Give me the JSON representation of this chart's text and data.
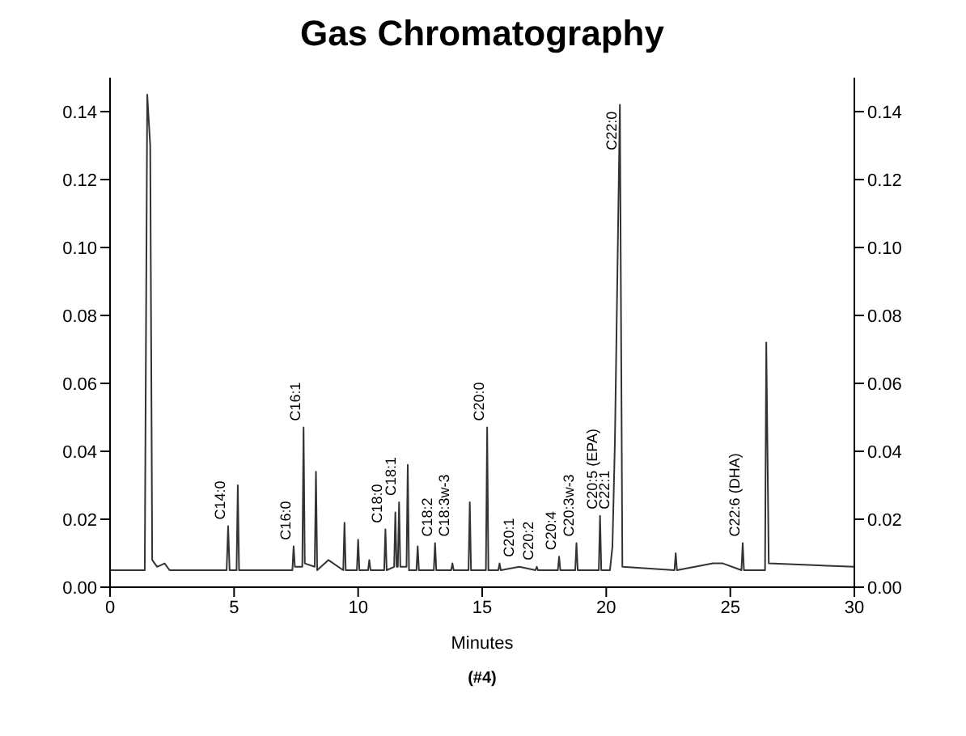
{
  "chart_data": {
    "type": "line",
    "title": "Gas Chromatography",
    "xlabel": "Minutes",
    "x": [
      0,
      1.4,
      1.5,
      1.62,
      1.7,
      1.9,
      2.2,
      2.4,
      4.7,
      4.76,
      4.82,
      5.1,
      5.15,
      5.2,
      7.35,
      7.4,
      7.45,
      7.75,
      7.8,
      7.85,
      8.25,
      8.3,
      8.35,
      8.8,
      9.4,
      9.45,
      9.5,
      9.95,
      10.0,
      10.05,
      10.4,
      10.45,
      10.5,
      11.05,
      11.1,
      11.15,
      11.45,
      11.5,
      11.55,
      11.6,
      11.65,
      11.7,
      11.95,
      12.0,
      12.05,
      12.35,
      12.4,
      12.45,
      13.05,
      13.1,
      13.15,
      13.75,
      13.8,
      13.85,
      14.45,
      14.5,
      14.55,
      15.15,
      15.2,
      15.25,
      15.65,
      15.7,
      15.75,
      16.5,
      17.15,
      17.2,
      17.25,
      18.05,
      18.1,
      18.15,
      18.75,
      18.8,
      18.85,
      19.7,
      19.75,
      19.8,
      20.15,
      20.25,
      20.35,
      20.55,
      20.65,
      22.75,
      22.8,
      22.85,
      24.3,
      24.7,
      25.45,
      25.5,
      25.55,
      26.4,
      26.45,
      26.55,
      30
    ],
    "series": [
      {
        "color": "#333333",
        "values": [
          0.005,
          0.005,
          0.145,
          0.13,
          0.008,
          0.006,
          0.007,
          0.005,
          0.005,
          0.018,
          0.005,
          0.005,
          0.03,
          0.005,
          0.005,
          0.012,
          0.006,
          0.006,
          0.047,
          0.007,
          0.006,
          0.034,
          0.005,
          0.008,
          0.005,
          0.019,
          0.005,
          0.005,
          0.014,
          0.005,
          0.005,
          0.008,
          0.005,
          0.005,
          0.017,
          0.005,
          0.006,
          0.022,
          0.006,
          0.006,
          0.025,
          0.006,
          0.006,
          0.036,
          0.005,
          0.005,
          0.012,
          0.005,
          0.005,
          0.013,
          0.005,
          0.005,
          0.007,
          0.005,
          0.005,
          0.025,
          0.005,
          0.005,
          0.047,
          0.005,
          0.005,
          0.007,
          0.005,
          0.006,
          0.005,
          0.006,
          0.005,
          0.005,
          0.009,
          0.005,
          0.005,
          0.013,
          0.005,
          0.005,
          0.021,
          0.005,
          0.005,
          0.012,
          0.043,
          0.142,
          0.006,
          0.005,
          0.01,
          0.005,
          0.007,
          0.007,
          0.005,
          0.013,
          0.005,
          0.005,
          0.072,
          0.007,
          0.006
        ]
      }
    ],
    "xlim": [
      0,
      30
    ],
    "xticks": [
      0,
      5,
      10,
      15,
      20,
      25,
      30
    ],
    "ylim": [
      0,
      0.15
    ],
    "yticks": [
      {
        "value": 0,
        "label": "0.00"
      },
      0.02,
      0.04,
      0.06,
      0.08,
      {
        "value": 0.1,
        "label": "0.10"
      },
      0.12,
      0.14
    ],
    "y2lim": [
      0,
      0.15
    ],
    "y2ticks": [
      {
        "value": 0,
        "label": "0.00"
      },
      0.02,
      0.04,
      0.06,
      0.08,
      {
        "value": 0.1,
        "label": "0.10"
      },
      0.12,
      0.14
    ],
    "grid": false,
    "legend": false,
    "marker": "none",
    "line_style": "solid",
    "annotations": [
      {
        "text": "C14:0",
        "x": 4.76,
        "y": 0.018
      },
      {
        "text": "C16:0",
        "x": 7.4,
        "y": 0.012
      },
      {
        "text": "C16:1",
        "x": 7.8,
        "y": 0.047
      },
      {
        "text": "C18:0",
        "x": 11.1,
        "y": 0.017
      },
      {
        "text": "C18:1",
        "x": 11.65,
        "y": 0.025
      },
      {
        "text": "C18:2",
        "x": 12.4,
        "y": 0.012
      },
      {
        "text": "C18:3w-3",
        "x": 13.8,
        "y": 0.007
      },
      {
        "text": "C20:0",
        "x": 15.2,
        "y": 0.047
      },
      {
        "text": "C20:1",
        "x": 15.7,
        "y": 0.007
      },
      {
        "text": "C20:2",
        "x": 17.2,
        "y": 0.006
      },
      {
        "text": "C20:4",
        "x": 18.1,
        "y": 0.009
      },
      {
        "text": "C20:3w-3",
        "x": 18.8,
        "y": 0.013
      },
      {
        "text": "C20:5 (EPA)",
        "x": 19.75,
        "y": 0.021
      },
      {
        "text": "C22:1",
        "x": 20.25,
        "y": 0.012
      },
      {
        "text": "C22:0",
        "x": 20.55,
        "y": 0.142
      },
      {
        "text": "C22:6 (DHA)",
        "x": 25.5,
        "y": 0.013
      },
      "(#4)"
    ]
  }
}
